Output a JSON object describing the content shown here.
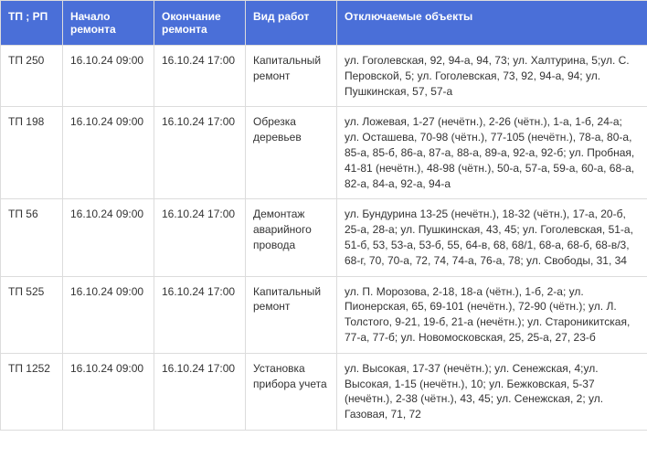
{
  "table": {
    "header_bg": "#4a6fd8",
    "header_color": "#ffffff",
    "border_color": "#dcdcdc",
    "columns": [
      "ТП ; РП",
      "Начало ремонта",
      "Окончание ремонта",
      "Вид работ",
      "Отключаемые объекты"
    ],
    "rows": [
      {
        "tp": "ТП 250",
        "start": "16.10.24 09:00",
        "end": "16.10.24 17:00",
        "type": "Капитальный ремонт",
        "objects": " ул. Гоголевская, 92, 94-а, 94, 73; ул. Халтурина, 5;ул. С. Перовской, 5; ул. Гоголевская, 73, 92, 94-а, 94;  ул. Пушкинская, 57, 57-а"
      },
      {
        "tp": "ТП 198",
        "start": "16.10.24 09:00",
        "end": "16.10.24 17:00",
        "type": "Обрезка деревьев",
        "objects": "ул. Ложевая, 1-27 (нечётн.), 2-26 (чётн.), 1-а, 1-б, 24-а; ул. Осташева, 70-98 (чётн.), 77-105 (нечётн.), 78-а, 80-а, 85-а, 85-б, 86-а, 87-а, 88-а, 89-а, 92-а, 92-б; ул. Пробная, 41-81 (нечётн.), 48-98 (чётн.), 50-а, 57-а, 59-а, 60-а, 68-а, 82-а, 84-а, 92-а, 94-а"
      },
      {
        "tp": "ТП 56",
        "start": "16.10.24 09:00",
        "end": "16.10.24 17:00",
        "type": "Демонтаж аварийного провода",
        "objects": "ул. Бундурина 13-25 (нечётн.), 18-32 (чётн.), 17-а, 20-б, 25-а, 28-а; ул. Пушкинская, 43, 45; ул. Гоголевская, 51-а, 51-б, 53, 53-а, 53-б, 55, 64-в, 68, 68/1, 68-а, 68-б, 68-в/3, 68-г, 70, 70-а, 72, 74, 74-а, 76-а, 78; ул. Свободы, 31, 34"
      },
      {
        "tp": "ТП 525",
        "start": "16.10.24 09:00",
        "end": "16.10.24 17:00",
        "type": "Капитальный ремонт",
        "objects": "ул. П. Морозова, 2-18, 18-а (чётн.), 1-б, 2-а; ул. Пионерская, 65, 69-101 (нечётн.), 72-90 (чётн.); ул. Л. Толстого, 9-21, 19-б, 21-а (нечётн.); ул. Староникитская, 77-а, 77-б; ул. Новомосковская, 25, 25-а, 27, 23-б"
      },
      {
        "tp": "ТП 1252",
        "start": "16.10.24 09:00",
        "end": "16.10.24 17:00",
        "type": "Установка прибора учета",
        "objects": "ул. Высокая, 17-37 (нечётн.); ул. Сенежская, 4;ул. Высокая, 1-15 (нечётн.), 10; ул. Бежковская, 5-37 (нечётн.), 2-38 (чётн.), 43, 45; ул. Сенежская, 2; ул. Газовая, 71, 72"
      }
    ]
  }
}
